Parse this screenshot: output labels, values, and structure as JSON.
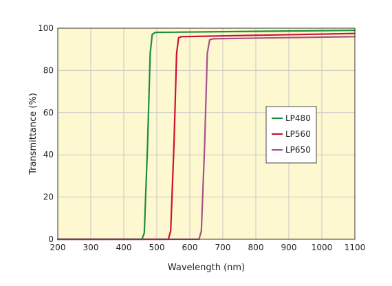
{
  "chart_data": {
    "type": "line",
    "title": "",
    "xlabel": "Wavelength  (nm)",
    "ylabel": "Transmittance  (%)",
    "xlim": [
      200,
      1100
    ],
    "ylim": [
      0,
      100
    ],
    "xticks": [
      200,
      300,
      400,
      500,
      600,
      700,
      800,
      900,
      1000,
      1100
    ],
    "yticks": [
      0,
      20,
      40,
      60,
      80,
      100
    ],
    "grid": true,
    "legend_position": "right",
    "plot_background": "#fdf8d0",
    "grid_color": "#c8c8c8",
    "series": [
      {
        "name": "LP480",
        "color": "#1a8f3c",
        "points": [
          [
            200,
            0
          ],
          [
            455,
            0
          ],
          [
            462,
            3
          ],
          [
            472,
            45
          ],
          [
            480,
            88
          ],
          [
            486,
            97
          ],
          [
            495,
            98
          ],
          [
            1100,
            99
          ]
        ]
      },
      {
        "name": "LP560",
        "color": "#cc1030",
        "points": [
          [
            200,
            0
          ],
          [
            535,
            0
          ],
          [
            542,
            4
          ],
          [
            552,
            45
          ],
          [
            560,
            88
          ],
          [
            566,
            95.5
          ],
          [
            575,
            96
          ],
          [
            1100,
            97.5
          ]
        ]
      },
      {
        "name": "LP650",
        "color": "#a8508a",
        "points": [
          [
            200,
            0
          ],
          [
            628,
            0
          ],
          [
            635,
            4
          ],
          [
            645,
            45
          ],
          [
            653,
            88
          ],
          [
            660,
            94.5
          ],
          [
            670,
            95
          ],
          [
            1100,
            96
          ]
        ]
      }
    ]
  }
}
